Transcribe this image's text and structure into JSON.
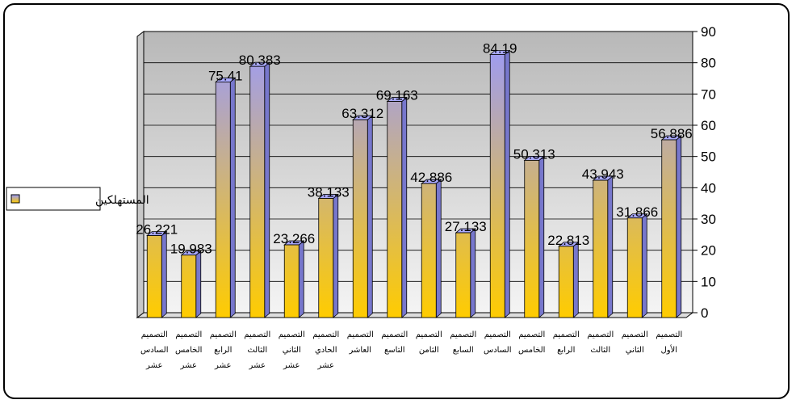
{
  "chart_data": {
    "type": "bar",
    "categories": [
      "التصميم السادس عشر",
      "التصميم الخامس عشر",
      "التصميم الرابع عشر",
      "التصميم الثالث عشر",
      "التصميم الثاني عشر",
      "التصميم الحادي عشر",
      "التصميم العاشر",
      "التصميم التاسع",
      "التصميم الثامن",
      "التصميم السابع",
      "التصميم السادس",
      "التصميم الخامس",
      "التصميم الرابع",
      "التصميم الثالث",
      "التصميم الثاني",
      "التصميم الأول"
    ],
    "series": [
      {
        "name": "المستهلكين",
        "color_top": "#9999ff",
        "color_bottom": "#ffcc00",
        "values": [
          26.221,
          19.983,
          75.41,
          80.383,
          23.266,
          38.133,
          63.312,
          69.163,
          42.886,
          27.133,
          84.19,
          50.313,
          22.813,
          43.943,
          31.866,
          56.886
        ]
      }
    ],
    "ylim": [
      0,
      90
    ],
    "yticks": [
      0,
      10,
      20,
      30,
      40,
      50,
      60,
      70,
      80,
      90
    ],
    "grid": true,
    "legend": "left",
    "y_axis_side": "right"
  }
}
